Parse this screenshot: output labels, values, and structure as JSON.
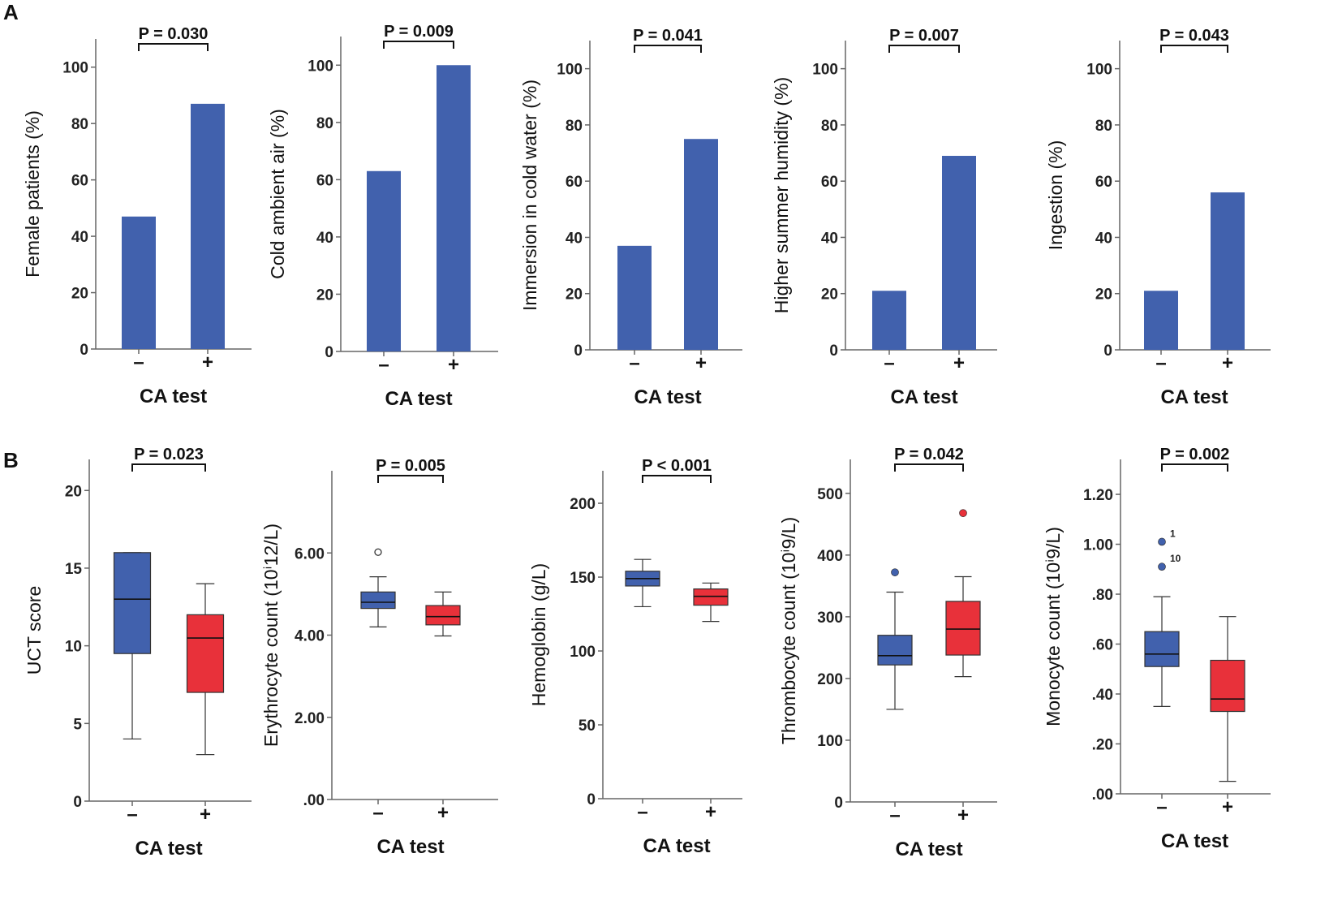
{
  "panel_labels": {
    "a": "A",
    "b": "B"
  },
  "colors": {
    "negative": "#4161AD",
    "positive": "#E8313A",
    "axis": "#666666",
    "text": "#111111"
  },
  "chart_data": [
    {
      "id": "a1",
      "type": "bar",
      "title": "",
      "xlabel": "CA test",
      "ylabel": "Female patients (%)",
      "categories": [
        "–",
        "+"
      ],
      "values": [
        47,
        87
      ],
      "ylim": [
        0,
        110
      ],
      "ticks": [
        0,
        20,
        40,
        60,
        80,
        100
      ],
      "tick_labels": [
        "0",
        "20",
        "40",
        "60",
        "80",
        "100"
      ],
      "pvalue": "P = 0.030"
    },
    {
      "id": "a2",
      "type": "bar",
      "title": "",
      "xlabel": "CA test",
      "ylabel": "Cold ambient air (%)",
      "categories": [
        "–",
        "+"
      ],
      "values": [
        63,
        100
      ],
      "ylim": [
        0,
        110
      ],
      "ticks": [
        0,
        20,
        40,
        60,
        80,
        100
      ],
      "tick_labels": [
        "0",
        "20",
        "40",
        "60",
        "80",
        "100"
      ],
      "pvalue": "P = 0.009"
    },
    {
      "id": "a3",
      "type": "bar",
      "title": "",
      "xlabel": "CA test",
      "ylabel": "Immersion in cold water (%)",
      "categories": [
        "–",
        "+"
      ],
      "values": [
        37,
        75
      ],
      "ylim": [
        0,
        110
      ],
      "ticks": [
        0,
        20,
        40,
        60,
        80,
        100
      ],
      "tick_labels": [
        "0",
        "20",
        "40",
        "60",
        "80",
        "100"
      ],
      "pvalue": "P = 0.041"
    },
    {
      "id": "a4",
      "type": "bar",
      "title": "",
      "xlabel": "CA test",
      "ylabel": "Higher summer humidity (%)",
      "categories": [
        "–",
        "+"
      ],
      "values": [
        21,
        69
      ],
      "ylim": [
        0,
        110
      ],
      "ticks": [
        0,
        20,
        40,
        60,
        80,
        100
      ],
      "tick_labels": [
        "0",
        "20",
        "40",
        "60",
        "80",
        "100"
      ],
      "pvalue": "P = 0.007"
    },
    {
      "id": "a5",
      "type": "bar",
      "title": "",
      "xlabel": "CA test",
      "ylabel": "Ingestion (%)",
      "categories": [
        "–",
        "+"
      ],
      "values": [
        21,
        56
      ],
      "ylim": [
        0,
        110
      ],
      "ticks": [
        0,
        20,
        40,
        60,
        80,
        100
      ],
      "tick_labels": [
        "0",
        "20",
        "40",
        "60",
        "80",
        "100"
      ],
      "pvalue": "P = 0.043"
    },
    {
      "id": "b1",
      "type": "box",
      "title": "",
      "xlabel": "CA test",
      "ylabel": "UCT score",
      "categories": [
        "–",
        "+"
      ],
      "ylim": [
        0,
        22
      ],
      "ticks": [
        0,
        5,
        10,
        15,
        20
      ],
      "tick_labels": [
        "0",
        "5",
        "10",
        "15",
        "20"
      ],
      "boxes": [
        {
          "min": 4,
          "q1": 9.5,
          "median": 13,
          "q3": 16,
          "max": 16,
          "outliers": []
        },
        {
          "min": 3,
          "q1": 7,
          "median": 10.5,
          "q3": 12,
          "max": 14,
          "outliers": []
        }
      ],
      "pvalue": "P = 0.023"
    },
    {
      "id": "b2",
      "type": "box",
      "title": "",
      "xlabel": "CA test",
      "ylabel": "Erythrocyte count (10ⁱ12/L)",
      "categories": [
        "–",
        "+"
      ],
      "ylim": [
        0,
        8
      ],
      "ticks": [
        0,
        2,
        4,
        6
      ],
      "tick_labels": [
        ".00",
        "2.00",
        "4.00",
        "6.00"
      ],
      "boxes": [
        {
          "min": 4.2,
          "q1": 4.65,
          "median": 4.8,
          "q3": 5.05,
          "max": 5.42,
          "outliers": [
            {
              "value": 6.02,
              "style": "open",
              "label": ""
            }
          ]
        },
        {
          "min": 3.98,
          "q1": 4.25,
          "median": 4.45,
          "q3": 4.72,
          "max": 5.05,
          "outliers": []
        }
      ],
      "pvalue": "P = 0.005"
    },
    {
      "id": "b3",
      "type": "box",
      "title": "",
      "xlabel": "CA test",
      "ylabel": "Hemoglobin (g/L)",
      "categories": [
        "–",
        "+"
      ],
      "ylim": [
        0,
        222
      ],
      "ticks": [
        0,
        50,
        100,
        150,
        200
      ],
      "tick_labels": [
        "0",
        "50",
        "100",
        "150",
        "200"
      ],
      "boxes": [
        {
          "min": 130,
          "q1": 144,
          "median": 149,
          "q3": 154,
          "max": 162,
          "outliers": []
        },
        {
          "min": 120,
          "q1": 131,
          "median": 137,
          "q3": 142,
          "max": 146,
          "outliers": []
        }
      ],
      "pvalue": "P < 0.001"
    },
    {
      "id": "b4",
      "type": "box",
      "title": "",
      "xlabel": "CA test",
      "ylabel": "Thrombocyte count (10ⁱ9/L)",
      "categories": [
        "–",
        "+"
      ],
      "ylim": [
        0,
        555
      ],
      "ticks": [
        0,
        100,
        200,
        300,
        400,
        500
      ],
      "tick_labels": [
        "0",
        "100",
        "200",
        "300",
        "400",
        "500"
      ],
      "boxes": [
        {
          "min": 150,
          "q1": 222,
          "median": 237,
          "q3": 270,
          "max": 340,
          "outliers": [
            {
              "value": 372,
              "style": "filled",
              "label": ""
            }
          ]
        },
        {
          "min": 203,
          "q1": 238,
          "median": 280,
          "q3": 325,
          "max": 365,
          "outliers": [
            {
              "value": 468,
              "style": "filled",
              "label": ""
            }
          ]
        }
      ],
      "pvalue": "P = 0.042"
    },
    {
      "id": "b5",
      "type": "box",
      "title": "",
      "xlabel": "CA test",
      "ylabel": "Monocyte count (10ⁱ9/L)",
      "categories": [
        "–",
        "+"
      ],
      "ylim": [
        0,
        1.34
      ],
      "ticks": [
        0,
        0.2,
        0.4,
        0.6,
        0.8,
        1.0,
        1.2
      ],
      "tick_labels": [
        ".00",
        ".20",
        ".40",
        ".60",
        ".80",
        "1.00",
        "1.20"
      ],
      "boxes": [
        {
          "min": 0.35,
          "q1": 0.51,
          "median": 0.56,
          "q3": 0.65,
          "max": 0.79,
          "outliers": [
            {
              "value": 1.01,
              "style": "filled",
              "label": "1"
            },
            {
              "value": 0.91,
              "style": "filled",
              "label": "10"
            }
          ]
        },
        {
          "min": 0.05,
          "q1": 0.33,
          "median": 0.38,
          "q3": 0.535,
          "max": 0.71,
          "outliers": []
        }
      ],
      "pvalue": "P = 0.002"
    }
  ]
}
